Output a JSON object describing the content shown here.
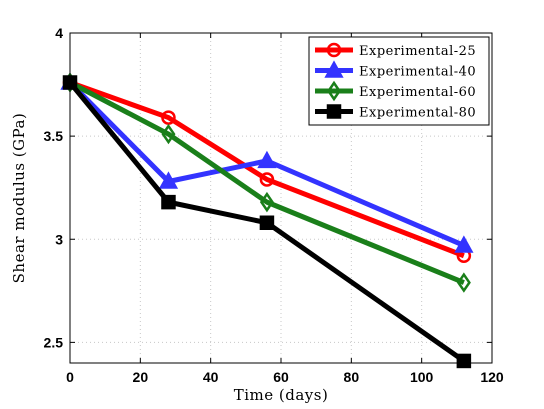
{
  "chart_data": {
    "type": "line",
    "title": "",
    "xlabel": "Time (days)",
    "ylabel": "Shear modulus (GPa)",
    "xlim": [
      0,
      120
    ],
    "ylim": [
      2.4,
      4.0
    ],
    "xticks": [
      0,
      20,
      40,
      60,
      80,
      100,
      120
    ],
    "xtick_labels": [
      "0",
      "20",
      "40",
      "60",
      "80",
      "100",
      "120"
    ],
    "yticks": [
      2.5,
      3.0,
      3.5,
      4.0
    ],
    "ytick_labels": [
      "2.5",
      "3",
      "3.5",
      "4"
    ],
    "grid": true,
    "legend_position": "top-right",
    "x": [
      0,
      28,
      56,
      112
    ],
    "series": [
      {
        "name": "Experimental-25",
        "color": "#ff0000",
        "marker": "circle",
        "values": [
          3.76,
          3.59,
          3.29,
          2.92
        ]
      },
      {
        "name": "Experimental-40",
        "color": "#3333ff",
        "marker": "triangle",
        "values": [
          3.76,
          3.28,
          3.38,
          2.97
        ]
      },
      {
        "name": "Experimental-60",
        "color": "#1a7f1a",
        "marker": "diamond",
        "values": [
          3.76,
          3.51,
          3.18,
          2.79
        ]
      },
      {
        "name": "Experimental-80",
        "color": "#000000",
        "marker": "square",
        "values": [
          3.76,
          3.18,
          3.08,
          2.41
        ]
      }
    ]
  }
}
